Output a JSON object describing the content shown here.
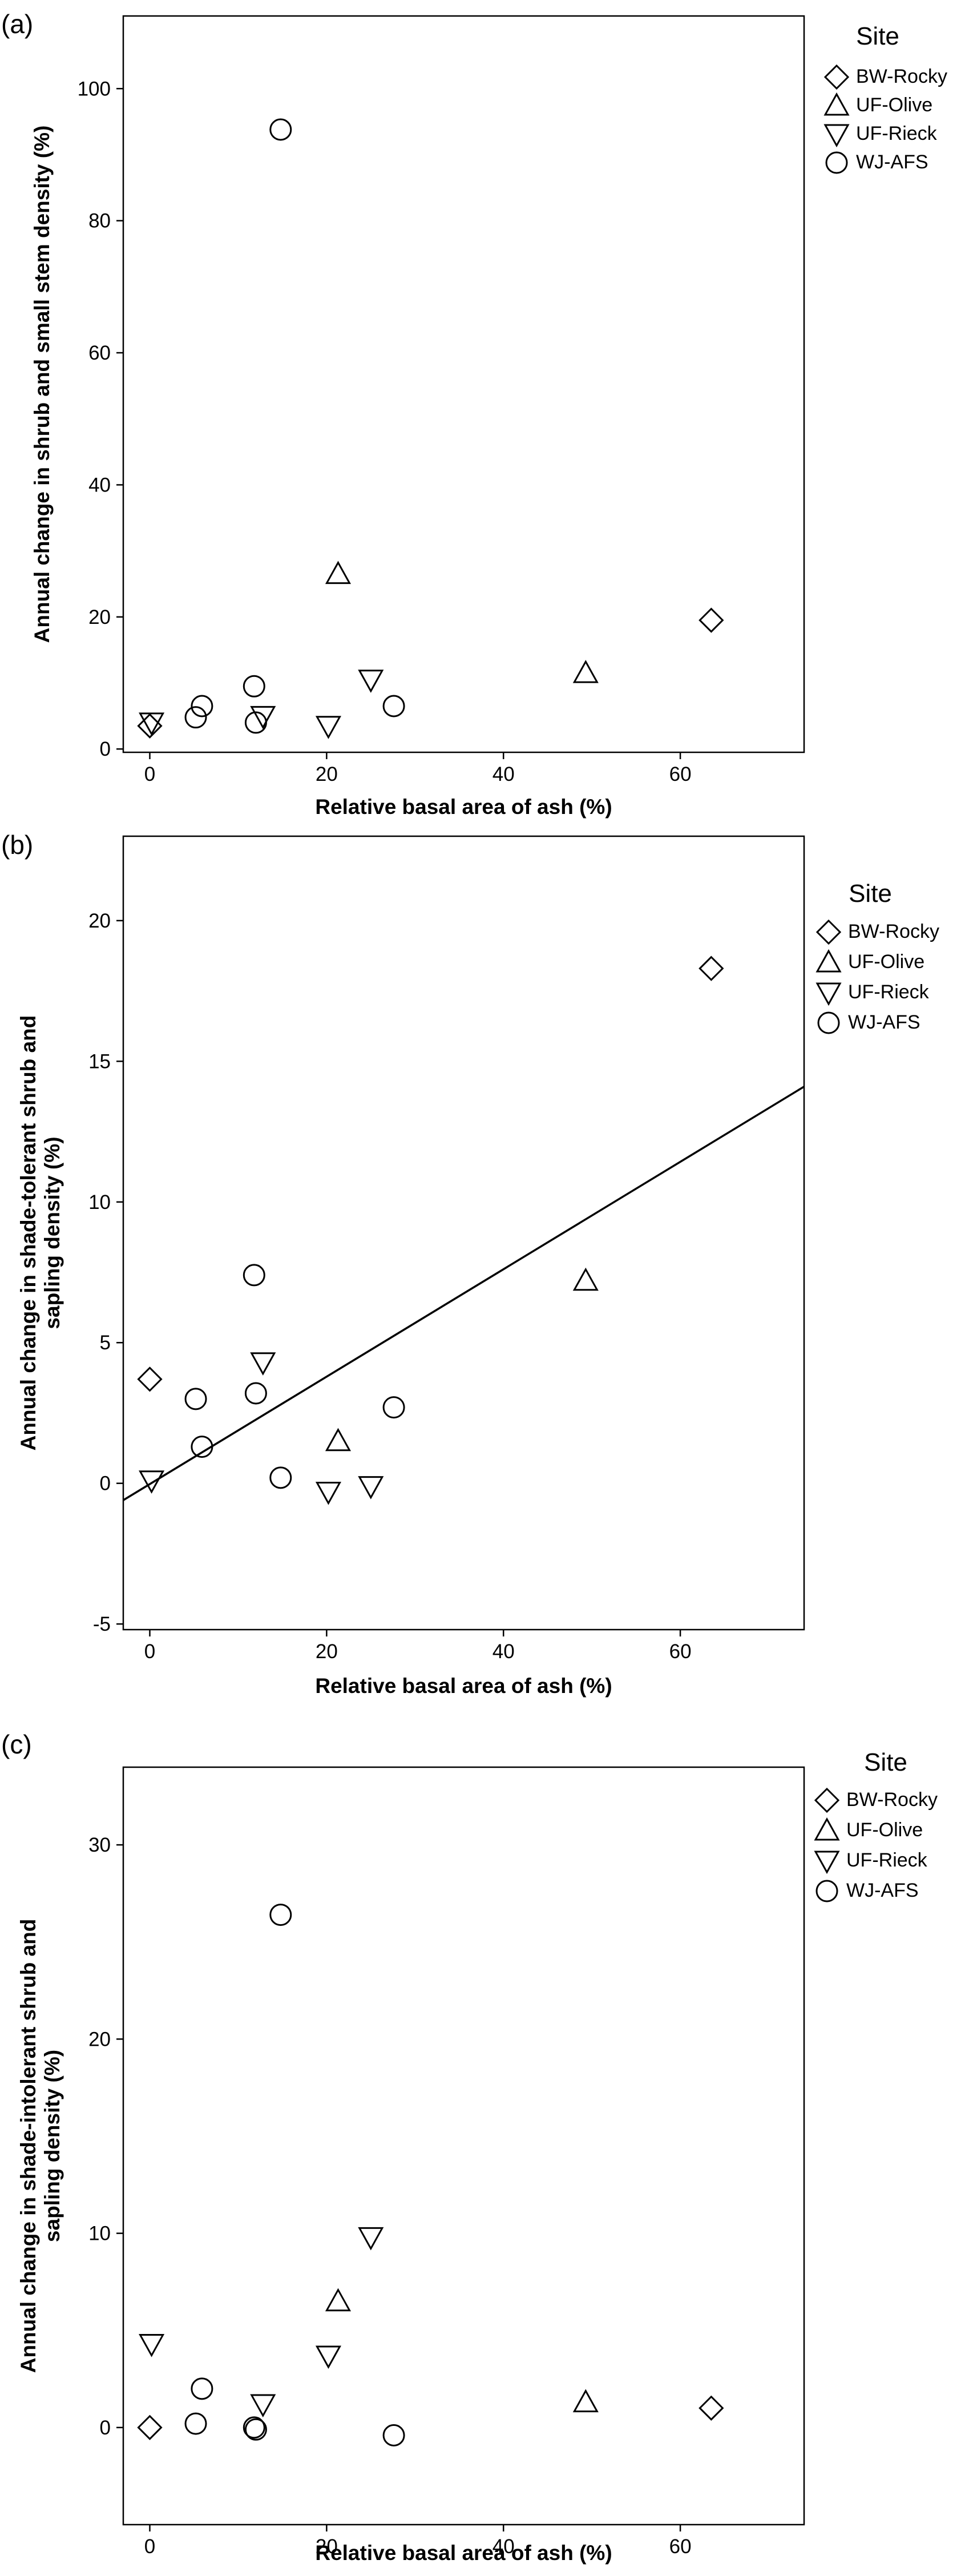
{
  "legend": {
    "title": "Site",
    "entries": [
      {
        "name": "BW-Rocky",
        "marker": "diamond"
      },
      {
        "name": "UF-Olive",
        "marker": "triangle-up"
      },
      {
        "name": "UF-Rieck",
        "marker": "triangle-down"
      },
      {
        "name": "WJ-AFS",
        "marker": "circle"
      }
    ]
  },
  "chart_data": [
    {
      "type": "scatter",
      "panel_label": "(a)",
      "xlabel": "Relative basal area of ash (%)",
      "ylabel": "Annual change in shrub and small stem density (%)",
      "xlim": [
        -3,
        74
      ],
      "ylim": [
        -0.5,
        111
      ],
      "xticks": [
        0,
        20,
        40,
        60
      ],
      "yticks": [
        0,
        20,
        40,
        60,
        80,
        100
      ],
      "grid": false,
      "legend_position": "right",
      "series": [
        {
          "name": "BW-Rocky",
          "marker": "diamond",
          "points": [
            [
              0,
              3.5
            ],
            [
              63.5,
              19.5
            ]
          ]
        },
        {
          "name": "UF-Olive",
          "marker": "triangle-up",
          "points": [
            [
              21.3,
              26.5
            ],
            [
              49.3,
              11.5
            ]
          ]
        },
        {
          "name": "UF-Rieck",
          "marker": "triangle-down",
          "points": [
            [
              0.2,
              4.0
            ],
            [
              12.8,
              5.0
            ],
            [
              20.2,
              3.5
            ],
            [
              25.0,
              10.5
            ]
          ]
        },
        {
          "name": "WJ-AFS",
          "marker": "circle",
          "points": [
            [
              5.2,
              4.8
            ],
            [
              5.9,
              6.5
            ],
            [
              11.8,
              9.5
            ],
            [
              12.0,
              4.0
            ],
            [
              14.8,
              93.8
            ],
            [
              27.6,
              6.5
            ]
          ]
        }
      ]
    },
    {
      "type": "scatter",
      "panel_label": "(b)",
      "xlabel": "Relative basal area of ash (%)",
      "ylabel": "Annual change in shade-tolerant shrub and sapling density (%)",
      "xlim": [
        -3,
        74
      ],
      "ylim": [
        -5.2,
        23
      ],
      "xticks": [
        0,
        20,
        40,
        60
      ],
      "yticks": [
        -5,
        0,
        5,
        10,
        15,
        20
      ],
      "grid": false,
      "legend_position": "right",
      "fit_line": {
        "x": [
          -3,
          74
        ],
        "y": [
          -0.6,
          14.1
        ]
      },
      "series": [
        {
          "name": "BW-Rocky",
          "marker": "diamond",
          "points": [
            [
              0,
              3.7
            ],
            [
              63.5,
              18.3
            ]
          ]
        },
        {
          "name": "UF-Olive",
          "marker": "triangle-up",
          "points": [
            [
              21.3,
              1.5
            ],
            [
              49.3,
              7.2
            ]
          ]
        },
        {
          "name": "UF-Rieck",
          "marker": "triangle-down",
          "points": [
            [
              0.2,
              0.1
            ],
            [
              12.8,
              4.3
            ],
            [
              20.2,
              -0.3
            ],
            [
              25.0,
              -0.1
            ]
          ]
        },
        {
          "name": "WJ-AFS",
          "marker": "circle",
          "points": [
            [
              5.2,
              3.0
            ],
            [
              5.9,
              1.3
            ],
            [
              11.8,
              7.4
            ],
            [
              12.0,
              3.2
            ],
            [
              14.8,
              0.2
            ],
            [
              27.6,
              2.7
            ]
          ]
        }
      ]
    },
    {
      "type": "scatter",
      "panel_label": "(c)",
      "xlabel": "Relative basal area of ash (%)",
      "ylabel": "Annual change in shade-intolerant shrub and sapling density (%)",
      "xlim": [
        -3,
        74
      ],
      "ylim": [
        -5,
        34
      ],
      "xticks": [
        0,
        20,
        40,
        60
      ],
      "yticks": [
        0,
        10,
        20,
        30
      ],
      "grid": false,
      "legend_position": "right",
      "series": [
        {
          "name": "BW-Rocky",
          "marker": "diamond",
          "points": [
            [
              0,
              0.0
            ],
            [
              63.5,
              1.0
            ]
          ]
        },
        {
          "name": "UF-Olive",
          "marker": "triangle-up",
          "points": [
            [
              21.3,
              6.5
            ],
            [
              49.3,
              1.3
            ]
          ]
        },
        {
          "name": "UF-Rieck",
          "marker": "triangle-down",
          "points": [
            [
              0.2,
              4.3
            ],
            [
              12.8,
              1.2
            ],
            [
              20.2,
              3.7
            ],
            [
              25.0,
              9.8
            ]
          ]
        },
        {
          "name": "WJ-AFS",
          "marker": "circle",
          "points": [
            [
              5.2,
              0.2
            ],
            [
              5.9,
              2.0
            ],
            [
              11.8,
              0.0
            ],
            [
              12.0,
              -0.1
            ],
            [
              14.8,
              26.4
            ],
            [
              27.6,
              -0.4
            ]
          ]
        }
      ]
    }
  ]
}
